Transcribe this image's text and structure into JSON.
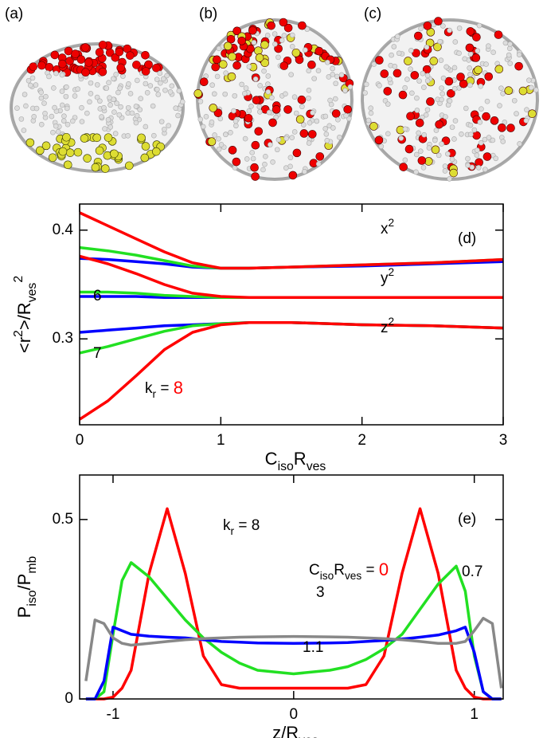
{
  "images": {
    "labels": [
      "(a)",
      "(b)",
      "(c)"
    ]
  },
  "chart_data": [
    {
      "type": "line",
      "panel": "(d)",
      "xlabel": [
        {
          "text": "C"
        },
        {
          "text": "iso",
          "shift": "sub"
        },
        {
          "text": "R"
        },
        {
          "text": "ves",
          "shift": "sub"
        }
      ],
      "ylabel": [
        {
          "text": "<r"
        },
        {
          "text": "2",
          "shift": "super"
        },
        {
          "text": ">/R"
        },
        {
          "text": "ves",
          "shift": "sub"
        },
        {
          "text": "2",
          "shift": "super"
        }
      ],
      "xlim": [
        0,
        3
      ],
      "xticks": [
        0,
        1,
        2,
        3
      ],
      "ylim": [
        0.221,
        0.424
      ],
      "yticks": [
        0.3,
        0.4
      ],
      "x": [
        0,
        0.2,
        0.4,
        0.6,
        0.8,
        1.0,
        1.2,
        1.5,
        2,
        2.5,
        3
      ],
      "curve_labels": [
        [
          {
            "text": "x"
          },
          {
            "text": "2",
            "shift": "super"
          }
        ],
        [
          {
            "text": "y"
          },
          {
            "text": "2",
            "shift": "super"
          }
        ],
        [
          {
            "text": "z"
          },
          {
            "text": "2",
            "shift": "super"
          }
        ]
      ],
      "kr_label": [
        {
          "text": "k"
        },
        {
          "text": "r",
          "shift": "sub"
        },
        {
          "text": " = "
        }
      ],
      "series": [
        {
          "name": "6",
          "color": "#0000ff",
          "curves": [
            [
              0.374,
              0.373,
              0.371,
              0.369,
              0.366,
              0.365,
              0.365,
              0.366,
              0.367,
              0.369,
              0.371
            ],
            [
              0.339,
              0.339,
              0.339,
              0.338,
              0.338,
              0.338,
              0.338,
              0.338,
              0.338,
              0.338,
              0.338
            ],
            [
              0.306,
              0.308,
              0.31,
              0.312,
              0.313,
              0.314,
              0.315,
              0.315,
              0.313,
              0.312,
              0.31
            ]
          ]
        },
        {
          "name": "7",
          "color": "#22e022",
          "curves": [
            [
              0.384,
              0.381,
              0.377,
              0.372,
              0.367,
              0.365,
              0.365,
              0.366,
              0.368,
              0.37,
              0.373
            ],
            [
              0.343,
              0.343,
              0.342,
              0.34,
              0.339,
              0.338,
              0.338,
              0.338,
              0.338,
              0.338,
              0.338
            ],
            [
              0.287,
              0.293,
              0.3,
              0.307,
              0.312,
              0.314,
              0.315,
              0.315,
              0.313,
              0.312,
              0.31
            ]
          ]
        },
        {
          "name": "8",
          "color": "#ff0000",
          "curves": [
            [
              0.416,
              0.404,
              0.392,
              0.38,
              0.37,
              0.365,
              0.365,
              0.366,
              0.368,
              0.37,
              0.373
            ],
            [
              0.376,
              0.369,
              0.36,
              0.35,
              0.342,
              0.339,
              0.338,
              0.338,
              0.338,
              0.338,
              0.338
            ],
            [
              0.226,
              0.243,
              0.266,
              0.29,
              0.306,
              0.313,
              0.315,
              0.315,
              0.313,
              0.312,
              0.31
            ]
          ]
        }
      ]
    },
    {
      "type": "line",
      "panel": "(e)",
      "xlabel": [
        {
          "text": "z/R"
        },
        {
          "text": "ves",
          "shift": "sub"
        }
      ],
      "ylabel": [
        {
          "text": "P"
        },
        {
          "text": "iso",
          "shift": "sub"
        },
        {
          "text": "/P"
        },
        {
          "text": "mb",
          "shift": "sub"
        }
      ],
      "xlim": [
        -1.185,
        1.16
      ],
      "xticks": [
        -1,
        0,
        1
      ],
      "ylim": [
        0,
        0.624
      ],
      "yticks": [
        0,
        0.5
      ],
      "kr_label": [
        {
          "text": "k"
        },
        {
          "text": "r",
          "shift": "sub"
        },
        {
          "text": " = 8"
        }
      ],
      "c_label": [
        {
          "text": "C"
        },
        {
          "text": "iso",
          "shift": "sub"
        },
        {
          "text": "R"
        },
        {
          "text": "ves",
          "shift": "sub"
        },
        {
          "text": " = "
        }
      ],
      "x": [
        -1.15,
        -1.1,
        -1.05,
        -1.0,
        -0.95,
        -0.9,
        -0.8,
        -0.7,
        -0.6,
        -0.5,
        -0.4,
        -0.3,
        -0.2,
        0,
        0.2,
        0.3,
        0.4,
        0.5,
        0.6,
        0.7,
        0.8,
        0.9,
        0.95,
        1.0,
        1.05,
        1.1,
        1.15
      ],
      "series": [
        {
          "name": "0",
          "color": "#ff0000",
          "values": [
            0,
            0,
            0,
            0.005,
            0.03,
            0.08,
            0.35,
            0.53,
            0.35,
            0.12,
            0.04,
            0.03,
            0.03,
            0.03,
            0.03,
            0.03,
            0.04,
            0.12,
            0.35,
            0.53,
            0.35,
            0.08,
            0.03,
            0.005,
            0,
            0,
            0
          ]
        },
        {
          "name": "0.7",
          "color": "#22e022",
          "values": [
            0,
            0,
            0.02,
            0.18,
            0.33,
            0.38,
            0.34,
            0.28,
            0.22,
            0.17,
            0.13,
            0.1,
            0.08,
            0.07,
            0.08,
            0.09,
            0.11,
            0.14,
            0.18,
            0.25,
            0.32,
            0.37,
            0.3,
            0.12,
            0.02,
            0,
            0
          ]
        },
        {
          "name": "1.1",
          "color": "#0000ff",
          "values": [
            0,
            0,
            0.05,
            0.2,
            0.19,
            0.18,
            0.175,
            0.172,
            0.17,
            0.165,
            0.16,
            0.158,
            0.156,
            0.155,
            0.156,
            0.157,
            0.16,
            0.163,
            0.167,
            0.172,
            0.178,
            0.19,
            0.2,
            0.13,
            0.02,
            0,
            0
          ]
        },
        {
          "name": "3",
          "color": "#888888",
          "values": [
            0.05,
            0.22,
            0.21,
            0.17,
            0.155,
            0.15,
            0.155,
            0.16,
            0.165,
            0.168,
            0.17,
            0.172,
            0.173,
            0.174,
            0.173,
            0.172,
            0.17,
            0.168,
            0.165,
            0.16,
            0.155,
            0.155,
            0.16,
            0.19,
            0.225,
            0.21,
            0.03
          ]
        }
      ]
    }
  ]
}
